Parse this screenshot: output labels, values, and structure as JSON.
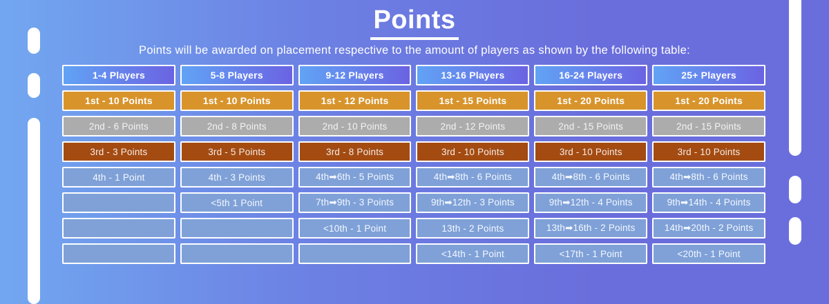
{
  "page": {
    "title": "Points",
    "subtitle": "Points will be awarded on placement respective to the amount of players as shown by the following table:"
  },
  "colors": {
    "bg_left": "#72A7F0",
    "bg_right": "#6A6EDC",
    "header_grad_left": "#61A3F5",
    "header_grad_right": "#6B63E2",
    "gold": "#D8942B",
    "silver": "#ACACAC",
    "bronze": "#A44B12",
    "blue_cell": "#7FA1D7"
  },
  "table": {
    "row_styles": [
      "header",
      "gold",
      "silver",
      "bronze",
      "blue",
      "blue",
      "blue",
      "blue"
    ],
    "columns": [
      {
        "header": "1-4 Players",
        "cells": [
          "1st - 10 Points",
          "2nd - 6 Points",
          "3rd - 3 Points",
          "4th - 1 Point",
          "",
          "",
          ""
        ]
      },
      {
        "header": "5-8 Players",
        "cells": [
          "1st - 10 Points",
          "2nd - 8 Points",
          "3rd - 5 Points",
          "4th - 3 Points",
          "<5th 1 Point",
          "",
          ""
        ]
      },
      {
        "header": "9-12 Players",
        "cells": [
          "1st - 12 Points",
          "2nd - 10 Points",
          "3rd - 8 Points",
          "4th➡6th - 5 Points",
          "7th➡9th - 3 Points",
          "<10th - 1 Point",
          ""
        ]
      },
      {
        "header": "13-16 Players",
        "cells": [
          "1st - 15 Points",
          "2nd - 12 Points",
          "3rd - 10 Points",
          "4th➡8th - 6 Points",
          "9th➡12th - 3 Points",
          "13th - 2 Points",
          "<14th - 1 Point"
        ]
      },
      {
        "header": "16-24 Players",
        "cells": [
          "1st - 20 Points",
          "2nd - 15 Points",
          "3rd - 10 Points",
          "4th➡8th - 6 Points",
          "9th➡12th - 4 Points",
          "13th➡16th - 2 Points",
          "<17th - 1 Point"
        ]
      },
      {
        "header": "25+ Players",
        "cells": [
          "1st - 20 Points",
          "2nd - 15 Points",
          "3rd - 10 Points",
          "4th➡8th - 6 Points",
          "9th➡14th - 4 Points",
          "14th➡20th - 2 Points",
          "<20th - 1 Point"
        ]
      }
    ]
  }
}
